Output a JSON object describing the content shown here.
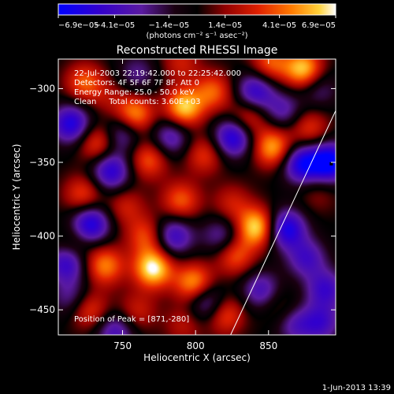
{
  "chart_data": {
    "type": "heatmap",
    "title": "Reconstructed RHESSI Image",
    "xlabel": "Heliocentric X (arcsec)",
    "ylabel": "Heliocentric Y (arcsec)",
    "xlim": [
      706,
      896
    ],
    "ylim": [
      -467,
      -280
    ],
    "x_ticks": [
      {
        "value": 750,
        "label": "750"
      },
      {
        "value": 800,
        "label": "800"
      },
      {
        "value": 850,
        "label": "850"
      }
    ],
    "y_ticks": [
      {
        "value": -300,
        "label": "−300"
      },
      {
        "value": -350,
        "label": "−350"
      },
      {
        "value": -400,
        "label": "−400"
      },
      {
        "value": -450,
        "label": "−450"
      }
    ],
    "colorbar": {
      "min": -6.9e-05,
      "max": 6.9e-05,
      "ticks": [
        {
          "value": -6.9e-05,
          "label": "−6.9e−05"
        },
        {
          "value": -4.1e-05,
          "label": "−4.1e−05"
        },
        {
          "value": -1.4e-05,
          "label": "−1.4e−05"
        },
        {
          "value": 1.4e-05,
          "label": "1.4e−05"
        },
        {
          "value": 4.1e-05,
          "label": "4.1e−05"
        },
        {
          "value": 6.9e-05,
          "label": "6.9e−05"
        }
      ],
      "units_label": "(photons cm⁻² s⁻¹ asec⁻²)"
    },
    "info_lines": [
      "22-Jul-2003 22:19:42.000 to 22:25:42.000",
      "Detectors: 4F 5F 6F 7F 8F, Att 0",
      "Energy Range: 25.0 - 50.0 keV",
      "Clean     Total counts: 3.60E+03"
    ],
    "peak_text": "Position of Peak = [871,-280]",
    "limb_line": [
      [
        824,
        -467
      ],
      [
        896,
        -315
      ]
    ],
    "peak_position": [
      871,
      -280
    ],
    "blobs": [
      {
        "x": 724,
        "y": -296,
        "v": 0.55
      },
      {
        "x": 790,
        "y": -282,
        "v": 0.35
      },
      {
        "x": 851,
        "y": -283,
        "v": 0.55
      },
      {
        "x": 874,
        "y": -287,
        "v": 0.85
      },
      {
        "x": 758,
        "y": -318,
        "v": 0.75
      },
      {
        "x": 792,
        "y": -313,
        "v": 0.85
      },
      {
        "x": 812,
        "y": -302,
        "v": 0.55
      },
      {
        "x": 741,
        "y": -306,
        "v": 0.2
      },
      {
        "x": 733,
        "y": -337,
        "v": 0.55
      },
      {
        "x": 768,
        "y": -348,
        "v": 0.55
      },
      {
        "x": 806,
        "y": -345,
        "v": 0.45
      },
      {
        "x": 836,
        "y": -320,
        "v": 0.5
      },
      {
        "x": 853,
        "y": -340,
        "v": 0.75
      },
      {
        "x": 878,
        "y": -327,
        "v": 0.45
      },
      {
        "x": 723,
        "y": -372,
        "v": 0.5
      },
      {
        "x": 752,
        "y": -380,
        "v": 0.35
      },
      {
        "x": 790,
        "y": -376,
        "v": 0.55
      },
      {
        "x": 825,
        "y": -378,
        "v": 0.35
      },
      {
        "x": 842,
        "y": -394,
        "v": 0.9
      },
      {
        "x": 717,
        "y": -406,
        "v": 0.3
      },
      {
        "x": 766,
        "y": -400,
        "v": 0.5
      },
      {
        "x": 738,
        "y": -420,
        "v": 0.65
      },
      {
        "x": 771,
        "y": -422,
        "v": 0.95
      },
      {
        "x": 799,
        "y": -432,
        "v": 0.75
      },
      {
        "x": 827,
        "y": -413,
        "v": 0.55
      },
      {
        "x": 727,
        "y": -450,
        "v": 0.5
      },
      {
        "x": 760,
        "y": -451,
        "v": 0.35
      },
      {
        "x": 792,
        "y": -460,
        "v": 0.3
      },
      {
        "x": 820,
        "y": -453,
        "v": 0.55
      },
      {
        "x": 857,
        "y": -448,
        "v": 0.25
      },
      {
        "x": 884,
        "y": -371,
        "v": 0.2
      },
      {
        "x": 715,
        "y": -324,
        "v": -0.8
      },
      {
        "x": 750,
        "y": -330,
        "v": -0.55
      },
      {
        "x": 742,
        "y": -356,
        "v": -0.75
      },
      {
        "x": 783,
        "y": -333,
        "v": -0.55
      },
      {
        "x": 826,
        "y": -333,
        "v": -0.85
      },
      {
        "x": 873,
        "y": -351,
        "v": -0.85
      },
      {
        "x": 892,
        "y": -350,
        "v": -1.0
      },
      {
        "x": 841,
        "y": -302,
        "v": -0.7
      },
      {
        "x": 884,
        "y": -300,
        "v": -0.35
      },
      {
        "x": 728,
        "y": -392,
        "v": -0.85
      },
      {
        "x": 712,
        "y": -418,
        "v": -0.7
      },
      {
        "x": 785,
        "y": -400,
        "v": -0.65
      },
      {
        "x": 818,
        "y": -400,
        "v": -0.45
      },
      {
        "x": 862,
        "y": -395,
        "v": -0.85
      },
      {
        "x": 876,
        "y": -415,
        "v": -0.55
      },
      {
        "x": 845,
        "y": -437,
        "v": -0.55
      },
      {
        "x": 889,
        "y": -436,
        "v": -0.6
      },
      {
        "x": 886,
        "y": -459,
        "v": -0.55
      },
      {
        "x": 745,
        "y": -465,
        "v": -0.55
      },
      {
        "x": 715,
        "y": -442,
        "v": -0.4
      },
      {
        "x": 808,
        "y": -445,
        "v": -0.6
      },
      {
        "x": 868,
        "y": -460,
        "v": -0.45
      },
      {
        "x": 860,
        "y": -315,
        "v": -0.45
      },
      {
        "x": 760,
        "y": -290,
        "v": -0.35
      }
    ]
  },
  "footer": {
    "date": "1-Jun-2013 13:39"
  }
}
